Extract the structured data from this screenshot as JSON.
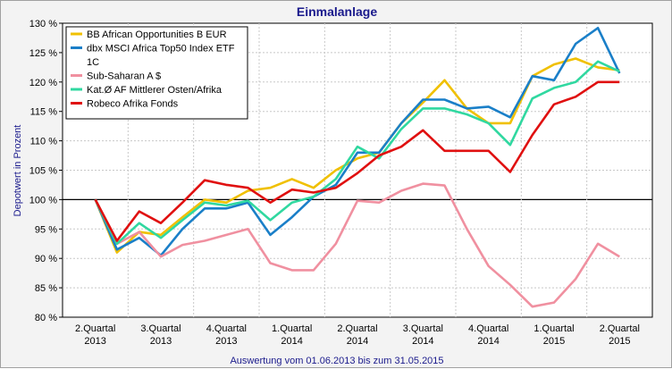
{
  "chart_data": {
    "type": "line",
    "title": "Einmalanlage",
    "ylabel": "Depotwert in Prozent",
    "xlabel": "Auswertung vom 01.06.2013 bis zum 31.05.2015",
    "ylim": [
      80,
      130
    ],
    "yticks": [
      "80 %",
      "85 %",
      "90 %",
      "95 %",
      "100 %",
      "105 %",
      "110 %",
      "115 %",
      "120 %",
      "125 %",
      "130 %"
    ],
    "categories": [
      [
        "2.Quartal",
        "2013"
      ],
      [
        "3.Quartal",
        "2013"
      ],
      [
        "4.Quartal",
        "2013"
      ],
      [
        "1.Quartal",
        "2014"
      ],
      [
        "2.Quartal",
        "2014"
      ],
      [
        "3.Quartal",
        "2014"
      ],
      [
        "4.Quartal",
        "2014"
      ],
      [
        "1.Quartal",
        "2015"
      ],
      [
        "2.Quartal",
        "2015"
      ]
    ],
    "x": [
      0,
      0.33,
      0.67,
      1,
      1.33,
      1.67,
      2,
      2.33,
      2.67,
      3,
      3.33,
      3.67,
      4,
      4.33,
      4.67,
      5,
      5.33,
      5.67,
      6,
      6.33,
      6.67,
      7,
      7.33,
      7.67,
      8
    ],
    "series": [
      {
        "name": "BB African Opportunities B EUR",
        "color": "#f0c000",
        "values": [
          100,
          91,
          94.5,
          94,
          97,
          100,
          99.5,
          101.5,
          102,
          103.5,
          102,
          105,
          107,
          108,
          113,
          116.5,
          120.3,
          115.5,
          113,
          113,
          121,
          123,
          124,
          122.5,
          122
        ]
      },
      {
        "name": "dbx MSCI Africa Top50 Index ETF 1C",
        "color": "#1a7fc8",
        "values": [
          100,
          91.5,
          93.5,
          90.5,
          95,
          98.5,
          98.5,
          99.5,
          94,
          97,
          100.5,
          102.5,
          108,
          108,
          113,
          117,
          117,
          115.5,
          115.8,
          114,
          121,
          120.3,
          126.5,
          129.2,
          121.5
        ]
      },
      {
        "name": "Sub-Saharan A $",
        "color": "#f090a0",
        "values": [
          100,
          92.5,
          94.5,
          90.3,
          92.3,
          93,
          94,
          95,
          89.2,
          88,
          88,
          92.5,
          99.8,
          99.5,
          101.5,
          102.7,
          102.4,
          95,
          88.7,
          85.5,
          81.8,
          82.5,
          86.5,
          92.5,
          90.3
        ]
      },
      {
        "name": "Kat.Ø AF Mittlerer Osten/Afrika",
        "color": "#30d8a0",
        "values": [
          100,
          92.5,
          96,
          93.5,
          96.5,
          99.5,
          99,
          99.8,
          96.5,
          99.5,
          100.5,
          103.5,
          109,
          107,
          112,
          115.5,
          115.5,
          114.5,
          113,
          109.3,
          117.2,
          119,
          120,
          123.5,
          121.8
        ]
      },
      {
        "name": "Robeco Afrika Fonds",
        "color": "#e01010",
        "values": [
          100,
          93,
          98,
          96,
          99.5,
          103.3,
          102.5,
          102,
          99.5,
          101.7,
          101.2,
          102,
          104.5,
          107.5,
          109,
          111.8,
          108.3,
          108.3,
          108.3,
          104.7,
          111,
          116.2,
          117.5,
          120,
          120
        ]
      }
    ]
  }
}
